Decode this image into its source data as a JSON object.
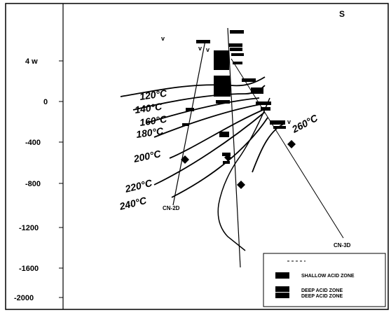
{
  "figure": {
    "corner_label": "S",
    "y_axis": {
      "ticks": [
        "4 w",
        "0",
        "-400",
        "-800",
        "-1200",
        "-1600",
        "-2000"
      ]
    },
    "isotherms": [
      "120°C",
      "140°C",
      "160°C",
      "180°C",
      "200°C",
      "220°C",
      "240°C",
      "260°C"
    ],
    "wells": [
      "CN-2D",
      "CN-3D"
    ],
    "markers": [
      "v",
      "v",
      "v",
      "v"
    ],
    "legend": {
      "items": [
        {
          "label": "SHALLOW ACID ZONE"
        },
        {
          "label": "DEEP ACID ZONE"
        },
        {
          "label": "DEEP ACID ZONE"
        }
      ]
    }
  }
}
